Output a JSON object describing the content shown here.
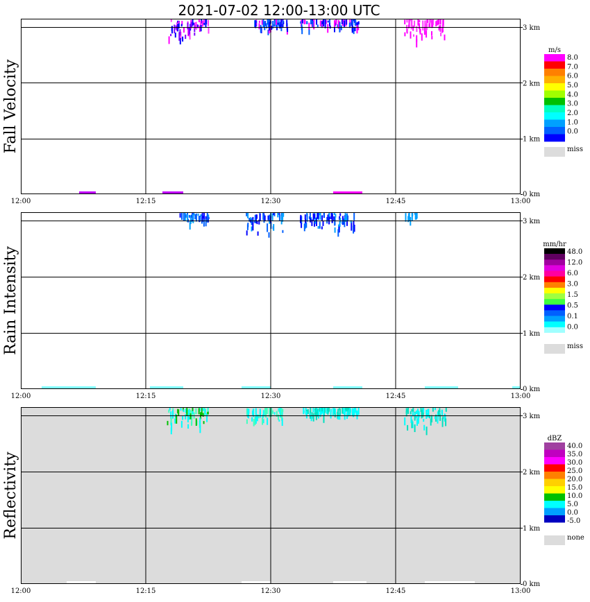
{
  "chart_data": {
    "type": "heatmap",
    "title": "2021-07-02   12:00-13:00 UTC",
    "x_ticks": [
      "12:00",
      "12:15",
      "12:30",
      "12:45",
      "13:00"
    ],
    "y_ticks": [
      "0 km",
      "1 km",
      "2 km",
      "3 km"
    ],
    "xlim_minutes": [
      0,
      60
    ],
    "ylim_km": [
      0,
      3.15
    ],
    "panels": [
      {
        "name": "fall-velocity",
        "ylabel": "Fall Velocity",
        "background": "#ffffff",
        "legend": {
          "unit": "m/s",
          "colors": [
            "#ff00ff",
            "#ff0000",
            "#ff8000",
            "#ffb000",
            "#ffff00",
            "#a0ff00",
            "#00c000",
            "#00ffc0",
            "#00ffff",
            "#00a0ff",
            "#0060ff",
            "#0000ff"
          ],
          "labels": [
            "8.0",
            "7.0",
            "6.0",
            "5.0",
            "4.0",
            "3.0",
            "2.0",
            "1.0",
            "0.0"
          ],
          "miss_label": "miss"
        },
        "clusters": [
          {
            "t0": 17.5,
            "t1": 22.5,
            "z0": 2.75,
            "z1": 3.15,
            "colors": [
              "#ff00ff",
              "#0000ff",
              "#8000ff",
              "#ff40ff"
            ]
          },
          {
            "t0": 28.0,
            "t1": 32.0,
            "z0": 2.9,
            "z1": 3.15,
            "colors": [
              "#0000ff",
              "#0060ff",
              "#ff00ff"
            ]
          },
          {
            "t0": 33.5,
            "t1": 40.5,
            "z0": 2.95,
            "z1": 3.15,
            "colors": [
              "#0000ff",
              "#0060ff",
              "#ff00ff"
            ]
          },
          {
            "t0": 46.0,
            "t1": 51.0,
            "z0": 2.75,
            "z1": 3.15,
            "colors": [
              "#ff00ff",
              "#ff40ff"
            ]
          }
        ],
        "surface": [
          {
            "t0": 7.0,
            "t1": 9.0,
            "color": "#c000ff"
          },
          {
            "t0": 17.0,
            "t1": 19.5,
            "color": "#c000ff"
          },
          {
            "t0": 37.5,
            "t1": 41.0,
            "color": "#ff00ff"
          }
        ]
      },
      {
        "name": "rain-intensity",
        "ylabel": "Rain Intensity",
        "background": "#ffffff",
        "legend": {
          "unit": "mm/hr",
          "colors": [
            "#000000",
            "#600060",
            "#a000a0",
            "#e000e0",
            "#ff00a0",
            "#ff0000",
            "#ff8000",
            "#ffff00",
            "#a0ff40",
            "#40ff40",
            "#0000ff",
            "#0060ff",
            "#00a0ff",
            "#00ffff",
            "#a0ffff",
            "#ffffff"
          ],
          "labels": [
            "48.0",
            "12.0",
            "6.0",
            "3.0",
            "1.5",
            "0.5",
            "0.1",
            "0.0"
          ],
          "miss_label": "miss"
        },
        "clusters": [
          {
            "t0": 19.0,
            "t1": 22.5,
            "z0": 2.95,
            "z1": 3.15,
            "colors": [
              "#0000ff",
              "#0060ff",
              "#00a0ff"
            ]
          },
          {
            "t0": 27.0,
            "t1": 31.5,
            "z0": 2.75,
            "z1": 3.15,
            "colors": [
              "#0060ff",
              "#00a0ff",
              "#0000ff"
            ]
          },
          {
            "t0": 33.5,
            "t1": 40.0,
            "z0": 2.75,
            "z1": 3.15,
            "colors": [
              "#0060ff",
              "#00a0ff",
              "#0000ff"
            ]
          },
          {
            "t0": 46.0,
            "t1": 47.5,
            "z0": 3.05,
            "z1": 3.15,
            "colors": [
              "#00a0ff"
            ]
          }
        ],
        "surface": [
          {
            "t0": 2.5,
            "t1": 9.0,
            "color": "#80ffff"
          },
          {
            "t0": 15.5,
            "t1": 19.5,
            "color": "#80ffff"
          },
          {
            "t0": 26.5,
            "t1": 30.0,
            "color": "#80ffff"
          },
          {
            "t0": 37.5,
            "t1": 41.0,
            "color": "#80ffff"
          },
          {
            "t0": 48.5,
            "t1": 52.5,
            "color": "#80ffff"
          },
          {
            "t0": 59.0,
            "t1": 60.0,
            "color": "#80ffff"
          }
        ]
      },
      {
        "name": "reflectivity",
        "ylabel": "Reflectivity",
        "background": "#dcdcdc",
        "legend": {
          "unit": "dBZ",
          "colors": [
            "#a040a0",
            "#c000c0",
            "#ff00ff",
            "#ff0000",
            "#ff8000",
            "#ffd000",
            "#ffff00",
            "#00c000",
            "#00ffff",
            "#00a0ff",
            "#0000c0",
            "#ffffff"
          ],
          "labels": [
            "40.0",
            "35.0",
            "30.0",
            "25.0",
            "20.0",
            "15.0",
            "10.0",
            "5.0",
            "0.0",
            "-5.0"
          ],
          "miss_label": "none"
        },
        "clusters": [
          {
            "t0": 17.5,
            "t1": 22.5,
            "z0": 2.75,
            "z1": 3.15,
            "colors": [
              "#00ffff",
              "#00c000",
              "#00ffff",
              "#40ffc0"
            ]
          },
          {
            "t0": 27.0,
            "t1": 31.5,
            "z0": 2.9,
            "z1": 3.15,
            "colors": [
              "#00ffff",
              "#40ffc0"
            ]
          },
          {
            "t0": 33.5,
            "t1": 40.5,
            "z0": 2.95,
            "z1": 3.15,
            "colors": [
              "#00ffff",
              "#00e0c0"
            ]
          },
          {
            "t0": 46.0,
            "t1": 51.0,
            "z0": 2.75,
            "z1": 3.15,
            "colors": [
              "#00ffff",
              "#00e0c0"
            ]
          }
        ],
        "surface": [
          {
            "t0": 5.5,
            "t1": 9.0,
            "color": "#ffffff"
          },
          {
            "t0": 26.5,
            "t1": 30.0,
            "color": "#ffffff"
          },
          {
            "t0": 37.5,
            "t1": 41.5,
            "color": "#ffffff"
          },
          {
            "t0": 48.5,
            "t1": 54.5,
            "color": "#ffffff"
          }
        ]
      }
    ]
  }
}
